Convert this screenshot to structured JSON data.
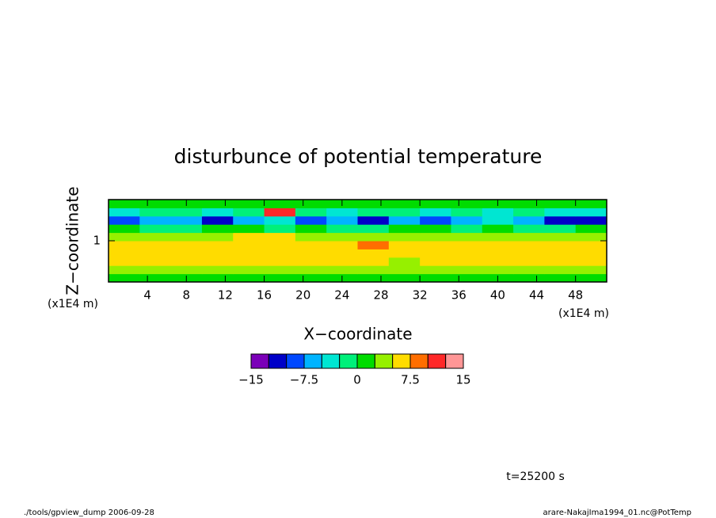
{
  "chart_data": {
    "type": "heatmap",
    "title": "disturbunce of potential temperature",
    "xlabel": "X−coordinate",
    "ylabel": "Z−coordinate",
    "x_unit": "(x1E4 m)",
    "y_unit": "(x1E4 m)",
    "xlim": [
      0,
      51.2
    ],
    "ylim": [
      0,
      2
    ],
    "xticks": [
      4,
      8,
      12,
      16,
      20,
      24,
      28,
      32,
      36,
      40,
      44,
      48
    ],
    "yticks": [
      1
    ],
    "x": [
      1.6,
      4.8,
      8,
      11.2,
      14.4,
      17.6,
      20.8,
      24,
      27.2,
      30.4,
      33.6,
      36.8,
      40,
      43.2,
      46.4,
      49.6
    ],
    "y": [
      0.1,
      0.3,
      0.5,
      0.7,
      0.9,
      1.1,
      1.3,
      1.5,
      1.7,
      1.9
    ],
    "values": [
      [
        2,
        2,
        2,
        1,
        2,
        2,
        2,
        2,
        2,
        2,
        2,
        2,
        2,
        2,
        2,
        2
      ],
      [
        4,
        4,
        3,
        4,
        4,
        3,
        4,
        4,
        4,
        3,
        4,
        4,
        4,
        3,
        4,
        4
      ],
      [
        6,
        6,
        6,
        6,
        6,
        6,
        6,
        6,
        6,
        4,
        6,
        6,
        6,
        6,
        6,
        6
      ],
      [
        6,
        6,
        6,
        6,
        6,
        6,
        6,
        6,
        6,
        6,
        6,
        6,
        6,
        6,
        6,
        6
      ],
      [
        6,
        6,
        6,
        6,
        6,
        6,
        6,
        6,
        9,
        6,
        6,
        6,
        6,
        6,
        6,
        6
      ],
      [
        4,
        4,
        4,
        4,
        6,
        6,
        4,
        4,
        4,
        4,
        4,
        4,
        4,
        4,
        4,
        4
      ],
      [
        0,
        -2,
        -1,
        2,
        0,
        -2,
        1,
        -1,
        -2,
        0,
        2,
        -1,
        0,
        -2,
        -1,
        0
      ],
      [
        -8,
        -6,
        -7,
        -11,
        -6,
        -5,
        -8,
        -7,
        -11,
        -6,
        -8,
        -6,
        -5,
        -7,
        -11,
        -11
      ],
      [
        -3,
        -1,
        -2,
        -4,
        -2,
        12,
        -1,
        -3,
        -2,
        -1,
        -4,
        -2,
        -3,
        -2,
        -4,
        -3
      ],
      [
        1,
        2,
        1,
        2,
        1,
        2,
        1,
        1,
        2,
        1,
        2,
        1,
        2,
        1,
        1,
        2
      ]
    ],
    "levels": [
      -15,
      -12.5,
      -10,
      -7.5,
      -5,
      -2.5,
      0,
      2.5,
      5,
      7.5,
      10,
      12.5,
      15
    ],
    "colors": [
      "#7b00b8",
      "#0000c8",
      "#0048ff",
      "#00b4ff",
      "#00e6d2",
      "#00f07a",
      "#00dc00",
      "#96f000",
      "#ffdc00",
      "#ff6e00",
      "#ff2828",
      "#ff9696"
    ],
    "colorbar_ticks": [
      {
        "value": -15,
        "label": "−15"
      },
      {
        "value": -7.5,
        "label": "−7.5"
      },
      0,
      7.5,
      15
    ],
    "time_label": "t=25200 s",
    "footer_left": "./tools/gpview_dump  2006-09-28",
    "footer_right": "arare-NakajIma1994_01.nc@PotTemp"
  }
}
